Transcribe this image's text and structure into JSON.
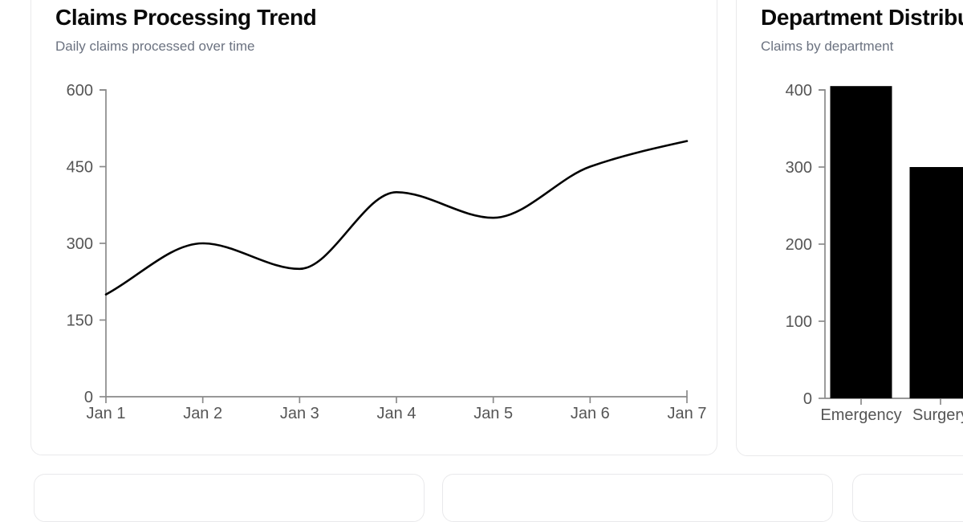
{
  "colors": {
    "title_text": "#0a0a0a",
    "subtitle_text": "#6b7280",
    "tick_label": "#555555",
    "axis": "#8a8a8a",
    "line": "#000000",
    "bar": "#000000",
    "card_border": "#e9e9eb",
    "background": "#ffffff"
  },
  "cards": {
    "claims": {
      "title": "Claims Processing Trend",
      "subtitle": "Daily claims processed over time"
    },
    "departments": {
      "title": "Department Distribution",
      "subtitle": "Claims by department"
    }
  },
  "chart_data": [
    {
      "type": "line",
      "title": "Claims Processing Trend",
      "subtitle": "Daily claims processed over time",
      "categories": [
        "Jan 1",
        "Jan 2",
        "Jan 3",
        "Jan 4",
        "Jan 5",
        "Jan 6",
        "Jan 7"
      ],
      "values": [
        200,
        300,
        250,
        400,
        350,
        450,
        500
      ],
      "xlabel": "",
      "ylabel": "",
      "ylim": [
        0,
        600
      ],
      "yticks": [
        0,
        150,
        300,
        450,
        600
      ],
      "grid": false,
      "legend": false,
      "line_color": "#000000",
      "curve": "smooth-monotone"
    },
    {
      "type": "bar",
      "title": "Department Distribution",
      "subtitle": "Claims by department",
      "categories": [
        "Emergency",
        "Surgery"
      ],
      "values": [
        405,
        300
      ],
      "xlabel": "",
      "ylabel": "",
      "ylim": [
        0,
        400
      ],
      "yticks": [
        0,
        100,
        200,
        300,
        400
      ],
      "grid": false,
      "legend": false,
      "bar_color": "#000000",
      "clipped_right": true
    }
  ]
}
